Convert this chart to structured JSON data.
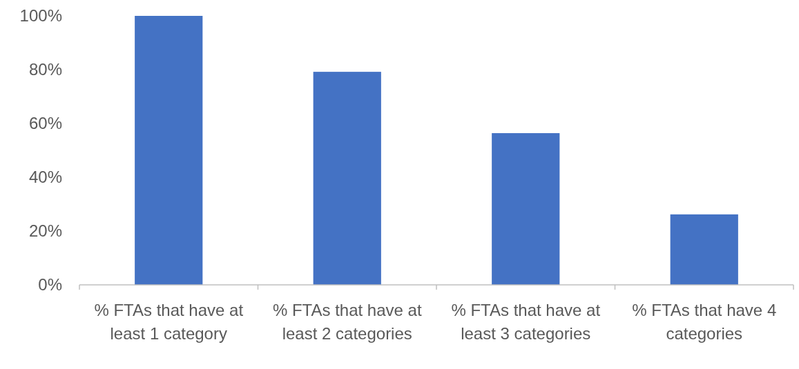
{
  "chart_data": {
    "type": "bar",
    "categories": [
      "% FTAs that have at least 1 category",
      "% FTAs that have at least 2 categories",
      "% FTAs that have at least 3 categories",
      "% FTAs that have 4 categories"
    ],
    "values": [
      100,
      79.2,
      56.4,
      26.2
    ],
    "color": "#4472c4",
    "ylim": [
      0,
      100
    ],
    "yticks": [
      {
        "value": 0,
        "label": "0%"
      },
      {
        "value": 20,
        "label": "20%"
      },
      {
        "value": 40,
        "label": "40%"
      },
      {
        "value": 60,
        "label": "60%"
      },
      {
        "value": 80,
        "label": "80%"
      },
      {
        "value": 100,
        "label": "100%"
      }
    ],
    "grid": false
  }
}
